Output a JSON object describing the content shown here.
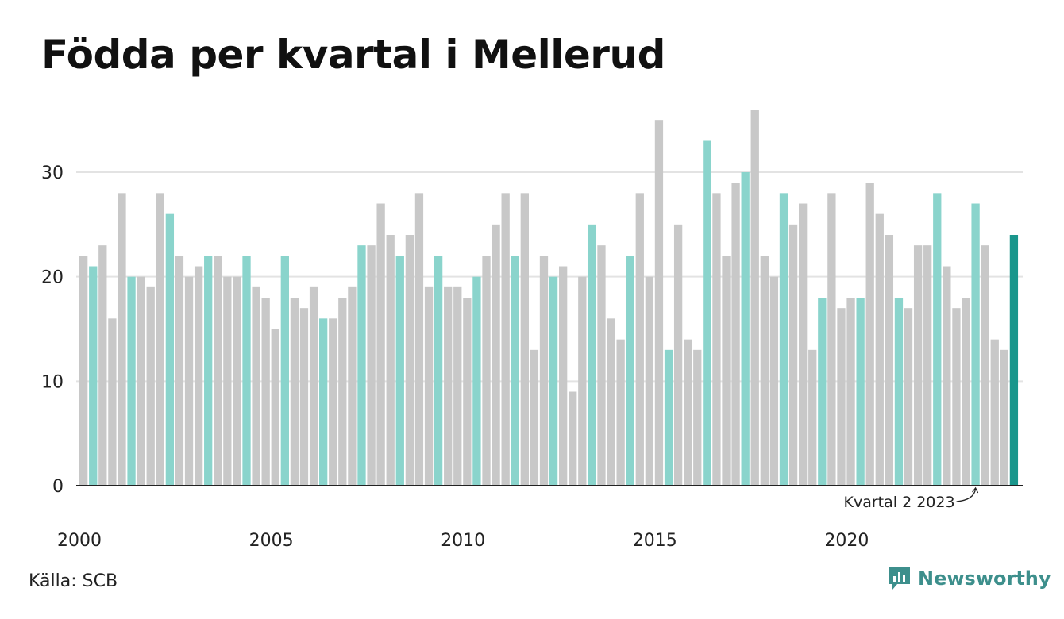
{
  "title": "Födda per kvartal i Mellerud",
  "source": "Källa: SCB",
  "brand": {
    "name": "Newsworthy",
    "icon": "newsworthy-logo-icon"
  },
  "colors": {
    "bar": "#c8c8c8",
    "highlight_quarter": "#8ad4cc",
    "latest": "#1a968c",
    "gridline": "#e3e3e3",
    "brand": "#3d8f8c"
  },
  "chart_data": {
    "type": "bar",
    "title": "Födda per kvartal i Mellerud",
    "xlabel": "",
    "ylabel": "",
    "start_year": 2000,
    "quarters_per_year": 4,
    "highlight_quarter": 2,
    "values": [
      22,
      21,
      23,
      16,
      28,
      20,
      20,
      19,
      28,
      26,
      22,
      20,
      21,
      22,
      22,
      20,
      20,
      22,
      19,
      18,
      15,
      22,
      18,
      17,
      19,
      16,
      16,
      18,
      19,
      23,
      23,
      27,
      24,
      22,
      24,
      28,
      19,
      22,
      19,
      19,
      18,
      20,
      22,
      25,
      28,
      22,
      28,
      13,
      22,
      20,
      21,
      9,
      20,
      25,
      23,
      16,
      14,
      22,
      28,
      20,
      35,
      13,
      25,
      14,
      13,
      33,
      28,
      22,
      29,
      30,
      36,
      22,
      20,
      28,
      25,
      27,
      13,
      18,
      28,
      17,
      18,
      18,
      29,
      26,
      24,
      18,
      17,
      23,
      23,
      28,
      21,
      17,
      18,
      27,
      23,
      14,
      13,
      24
    ],
    "ylim": [
      0,
      36
    ],
    "yticks": [
      "0",
      "10",
      "20",
      "30"
    ],
    "ytick_values": [
      0,
      10,
      20,
      30
    ],
    "xticks": [
      "2000",
      "2005",
      "2010",
      "2015",
      "2020"
    ],
    "xtick_years": [
      2000,
      2005,
      2010,
      2015,
      2020
    ],
    "grid": true,
    "annotation": {
      "text": "Kvartal 2 2023",
      "bar_index": 93
    }
  }
}
